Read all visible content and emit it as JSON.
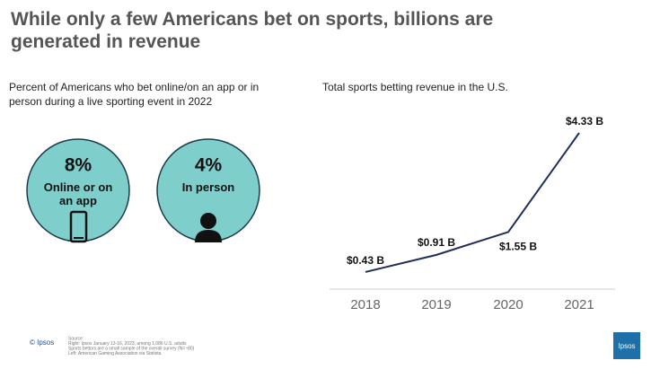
{
  "title": "While only a few Americans bet on sports, billions are generated in revenue",
  "chart_data": [
    {
      "type": "stat",
      "title": "Percent of Americans who bet online/on an app or in person during a live sporting event in 2022",
      "categories": [
        "Online or on an app",
        "In person"
      ],
      "values": [
        8,
        4
      ],
      "value_labels": [
        "8%",
        "4%"
      ],
      "color": "#7ecfcc"
    },
    {
      "type": "line",
      "title": "Total sports betting revenue in the U.S.",
      "categories": [
        "2018",
        "2019",
        "2020",
        "2021"
      ],
      "values": [
        0.43,
        0.91,
        1.55,
        4.33
      ],
      "value_labels": [
        "$0.43 B",
        "$0.91 B",
        "$1.55 B",
        "$4.33 B"
      ],
      "color": "#1f2d5a"
    }
  ],
  "source": [
    "Source:",
    "Right: Ipsos January 13-16, 2023, among 1,086 U.S. adults",
    "Sports bettors are a small sample of the overall survey (N=~80)",
    "Left: American Gaming Association via Statista"
  ],
  "brand": "Ipsos"
}
